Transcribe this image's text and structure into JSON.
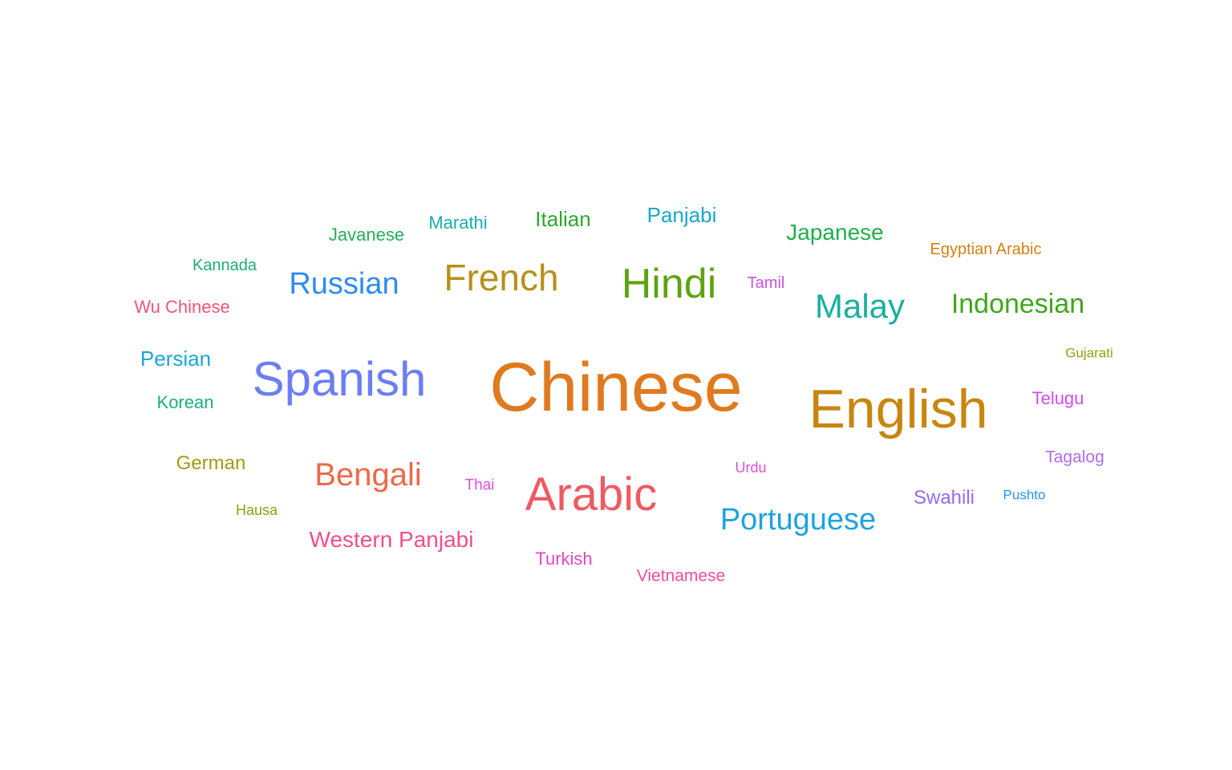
{
  "words": [
    {
      "text": "Chinese",
      "color": "#E07A1F"
    },
    {
      "text": "English",
      "color": "#C8860F"
    },
    {
      "text": "Spanish",
      "color": "#6B7EF5"
    },
    {
      "text": "Arabic",
      "color": "#EE5A63"
    },
    {
      "text": "Hindi",
      "color": "#5DA313"
    },
    {
      "text": "French",
      "color": "#B8901A"
    },
    {
      "text": "Malay",
      "color": "#1AAFA0"
    },
    {
      "text": "Bengali",
      "color": "#EB6A48"
    },
    {
      "text": "Russian",
      "color": "#2F8CF0"
    },
    {
      "text": "Portuguese",
      "color": "#1EA3E0"
    },
    {
      "text": "Indonesian",
      "color": "#3FA61C"
    },
    {
      "text": "Japanese",
      "color": "#1FAF4A"
    },
    {
      "text": "Western Panjabi",
      "color": "#F04E8C"
    },
    {
      "text": "German",
      "color": "#A59A10"
    },
    {
      "text": "Italian",
      "color": "#2CA82C"
    },
    {
      "text": "Panjabi",
      "color": "#15A9C4"
    },
    {
      "text": "Persian",
      "color": "#1AA6D8"
    },
    {
      "text": "Korean",
      "color": "#1AAE7E"
    },
    {
      "text": "Javanese",
      "color": "#24AE5A"
    },
    {
      "text": "Marathi",
      "color": "#18ADB0"
    },
    {
      "text": "Swahili",
      "color": "#8E6CF5"
    },
    {
      "text": "Turkish",
      "color": "#E247C0"
    },
    {
      "text": "Wu Chinese",
      "color": "#EF5675"
    },
    {
      "text": "Telugu",
      "color": "#CC4FE8"
    },
    {
      "text": "Tagalog",
      "color": "#B569F0"
    },
    {
      "text": "Vietnamese",
      "color": "#F04BA6"
    },
    {
      "text": "Egyptian Arabic",
      "color": "#D87F12"
    },
    {
      "text": "Kannada",
      "color": "#1FAD6E"
    },
    {
      "text": "Tamil",
      "color": "#C155E8"
    },
    {
      "text": "Urdu",
      "color": "#E04FD0"
    },
    {
      "text": "Thai",
      "color": "#DD4EE0"
    },
    {
      "text": "Hausa",
      "color": "#85A314"
    },
    {
      "text": "Gujarati",
      "color": "#94A012"
    },
    {
      "text": "Pushto",
      "color": "#2792E8"
    }
  ]
}
